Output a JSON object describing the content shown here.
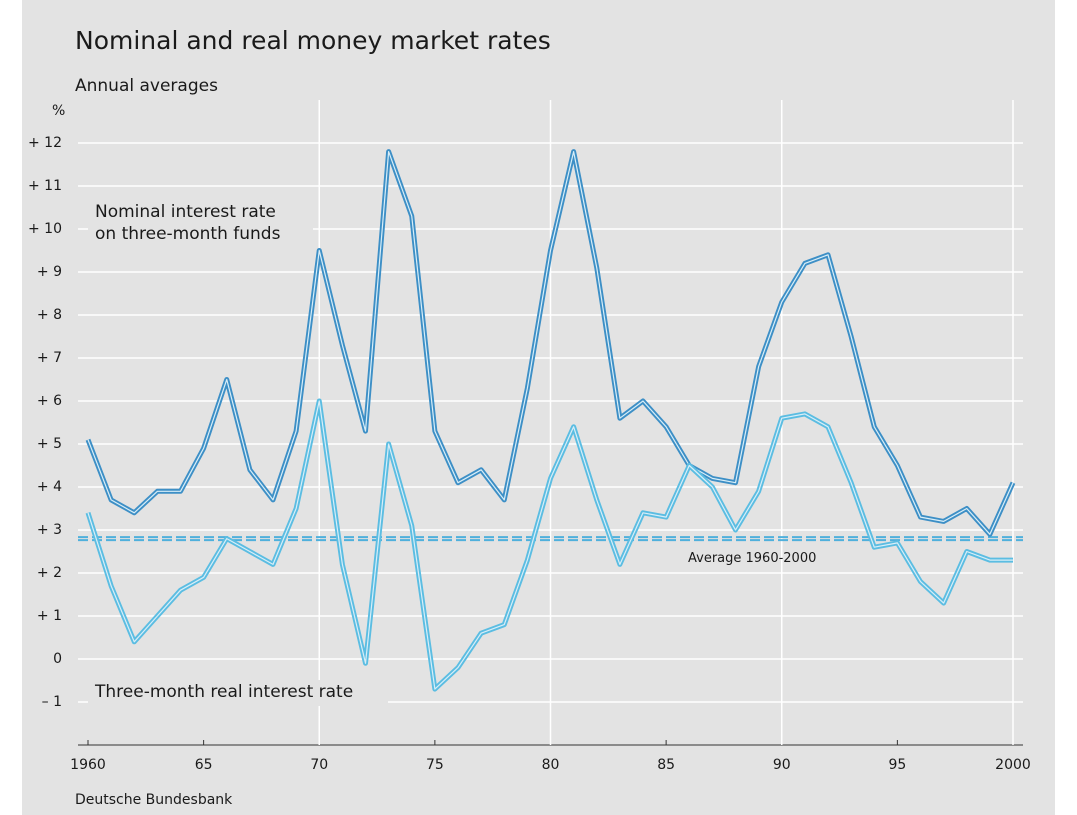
{
  "chart_data": {
    "type": "line",
    "title": "Nominal and real money market rates",
    "subtitle": "Annual averages",
    "y_unit": "%",
    "source": "Deutsche Bundesbank",
    "x": [
      1960,
      1961,
      1962,
      1963,
      1964,
      1965,
      1966,
      1967,
      1968,
      1969,
      1970,
      1971,
      1972,
      1973,
      1974,
      1975,
      1976,
      1977,
      1978,
      1979,
      1980,
      1981,
      1982,
      1983,
      1984,
      1985,
      1986,
      1987,
      1988,
      1989,
      1990,
      1991,
      1992,
      1993,
      1994,
      1995,
      1996,
      1997,
      1998,
      1999,
      2000
    ],
    "series": [
      {
        "name": [
          "Nominal interest rate",
          "on three-month funds"
        ],
        "color": "#3d8fc6",
        "values": [
          5.1,
          3.7,
          3.4,
          3.9,
          3.9,
          4.9,
          6.5,
          4.4,
          3.7,
          5.3,
          9.5,
          7.3,
          5.3,
          11.8,
          10.3,
          5.3,
          4.1,
          4.4,
          3.7,
          6.3,
          9.5,
          11.8,
          9.1,
          5.6,
          6.0,
          5.4,
          4.5,
          4.2,
          4.1,
          6.8,
          8.3,
          9.2,
          9.4,
          7.5,
          5.4,
          4.5,
          3.3,
          3.2,
          3.5,
          2.9,
          4.1
        ]
      },
      {
        "name": "Three-month real interest rate",
        "color": "#5bbde2",
        "values": [
          3.4,
          1.7,
          0.4,
          1.0,
          1.6,
          1.9,
          2.8,
          2.5,
          2.2,
          3.5,
          6.0,
          2.2,
          -0.1,
          5.0,
          3.1,
          -0.7,
          -0.2,
          0.6,
          0.8,
          2.3,
          4.2,
          5.4,
          3.7,
          2.2,
          3.4,
          3.3,
          4.5,
          4.0,
          3.0,
          3.9,
          5.6,
          5.7,
          5.4,
          4.1,
          2.6,
          2.7,
          1.8,
          1.3,
          2.5,
          2.3,
          2.3
        ]
      }
    ],
    "average": {
      "label": "Average 1960-2000",
      "value": 2.8,
      "color": "#4fb0dc"
    },
    "xlim": [
      1960,
      2000
    ],
    "xticks": [
      {
        "value": 1960,
        "label": "1960"
      },
      {
        "value": 1965,
        "label": "65"
      },
      {
        "value": 1970,
        "label": "70"
      },
      {
        "value": 1975,
        "label": "75"
      },
      {
        "value": 1980,
        "label": "80"
      },
      {
        "value": 1985,
        "label": "85"
      },
      {
        "value": 1990,
        "label": "90"
      },
      {
        "value": 1995,
        "label": "95"
      },
      {
        "value": 2000,
        "label": "2000"
      }
    ],
    "ylim": [
      -2,
      13
    ],
    "yticks": [
      {
        "value": -1,
        "label": "– 1"
      },
      0,
      {
        "value": 1,
        "label": "+ 1"
      },
      {
        "value": 2,
        "label": "+ 2"
      },
      {
        "value": 3,
        "label": "+ 3"
      },
      {
        "value": 4,
        "label": "+ 4"
      },
      {
        "value": 5,
        "label": "+ 5"
      },
      {
        "value": 6,
        "label": "+ 6"
      },
      {
        "value": 7,
        "label": "+ 7"
      },
      {
        "value": 8,
        "label": "+ 8"
      },
      {
        "value": 9,
        "label": "+ 9"
      },
      {
        "value": 10,
        "label": "+ 10"
      },
      {
        "value": 11,
        "label": "+ 11"
      },
      {
        "value": 12,
        "label": "+ 12"
      }
    ],
    "grid": true
  }
}
